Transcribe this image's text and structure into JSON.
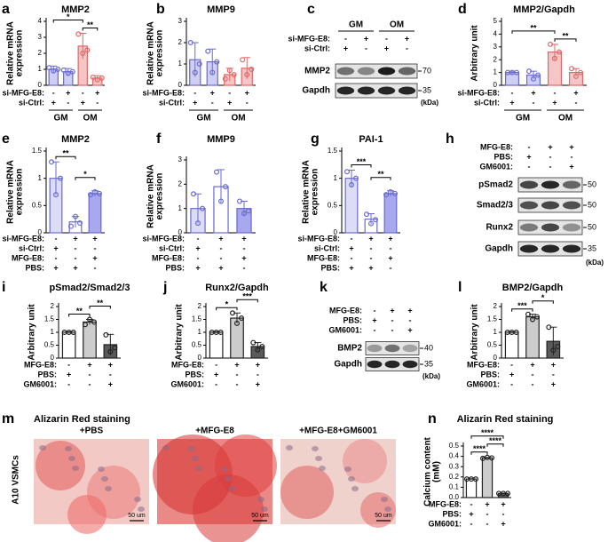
{
  "chart_data": [
    {
      "panel": "a",
      "type": "bar",
      "title": "MMP2",
      "y_label": [
        "Relative mRNA",
        "expression"
      ],
      "ylim": [
        0,
        4
      ],
      "yticks": [
        0,
        1,
        2,
        3,
        4
      ],
      "categories": [
        null,
        null,
        null,
        null
      ],
      "values": [
        1.0,
        0.85,
        2.45,
        0.45
      ],
      "errors": [
        0.2,
        0.2,
        0.8,
        0.15
      ],
      "points": [
        [
          1.1,
          0.9,
          1.0
        ],
        [
          0.95,
          0.75,
          0.85
        ],
        [
          3.2,
          2.0,
          2.2
        ],
        [
          0.5,
          0.35,
          0.45
        ]
      ],
      "colors": [
        "#cfcff5",
        "#cfcff5",
        "#f6c6c6",
        "#f6c6c6"
      ],
      "edge_colors": [
        "#6a6ad4",
        "#6a6ad4",
        "#e06868",
        "#e06868"
      ],
      "conditions": [
        {
          "label": "si-MFG-E8:",
          "signs": [
            "-",
            "+",
            "-",
            "+"
          ]
        },
        {
          "label": "si-Ctrl:",
          "signs": [
            "+",
            "-",
            "+",
            "-"
          ]
        }
      ],
      "groups": [
        "GM",
        "OM"
      ],
      "significance": [
        {
          "from": 2,
          "to": 3,
          "label": "**"
        },
        {
          "from": 0,
          "to": 2,
          "label": "*"
        }
      ]
    },
    {
      "panel": "b",
      "type": "bar",
      "title": "MMP9",
      "y_label": [
        "Relative mRNA",
        "expression"
      ],
      "ylim": [
        0,
        3
      ],
      "yticks": [
        0,
        1,
        2,
        3
      ],
      "categories": [
        null,
        null,
        null,
        null
      ],
      "values": [
        1.2,
        1.1,
        0.5,
        0.8
      ],
      "errors": [
        0.8,
        0.6,
        0.3,
        0.5
      ],
      "points": [
        [
          2.0,
          0.6,
          1.0
        ],
        [
          1.6,
          0.6,
          1.1
        ],
        [
          0.3,
          0.7,
          0.5
        ],
        [
          1.2,
          0.5,
          0.75
        ]
      ],
      "colors": [
        "#cfcff5",
        "#cfcff5",
        "#f6c6c6",
        "#f6c6c6"
      ],
      "edge_colors": [
        "#6a6ad4",
        "#6a6ad4",
        "#e06868",
        "#e06868"
      ],
      "conditions": [
        {
          "label": "si-MFG-E8:",
          "signs": [
            "-",
            "+",
            "-",
            "+"
          ]
        },
        {
          "label": "si-Ctrl:",
          "signs": [
            "+",
            "-",
            "+",
            "-"
          ]
        }
      ],
      "groups": [
        "GM",
        "OM"
      ],
      "significance": []
    },
    {
      "panel": "d",
      "type": "bar",
      "title": "MMP2/Gapdh",
      "y_label": [
        "Arbitrary unit"
      ],
      "ylim": [
        0,
        5
      ],
      "yticks": [
        0,
        1,
        2,
        3,
        4,
        5
      ],
      "categories": [
        null,
        null,
        null,
        null
      ],
      "values": [
        1.0,
        0.8,
        2.6,
        1.0
      ],
      "errors": [
        0.1,
        0.3,
        0.6,
        0.3
      ],
      "points": [
        [
          1.0,
          1.0,
          1.0
        ],
        [
          1.1,
          0.5,
          0.8
        ],
        [
          3.2,
          2.1,
          2.6
        ],
        [
          1.3,
          0.7,
          1.0
        ]
      ],
      "colors": [
        "#cfcff5",
        "#cfcff5",
        "#f6c6c6",
        "#f6c6c6"
      ],
      "edge_colors": [
        "#6a6ad4",
        "#6a6ad4",
        "#e06868",
        "#e06868"
      ],
      "conditions": [
        {
          "label": "si-MFG-E8:",
          "signs": [
            "-",
            "+",
            "-",
            "+"
          ]
        },
        {
          "label": "si-Ctrl:",
          "signs": [
            "+",
            "-",
            "+",
            "-"
          ]
        }
      ],
      "groups": [
        "GM",
        "OM"
      ],
      "significance": [
        {
          "from": 2,
          "to": 3,
          "label": "**"
        },
        {
          "from": 0,
          "to": 2,
          "label": "**"
        }
      ]
    },
    {
      "panel": "e",
      "type": "bar",
      "title": "MMP2",
      "y_label": [
        "Relative mRNA",
        "expression"
      ],
      "ylim": [
        0,
        1.5
      ],
      "yticks": [
        0,
        0.5,
        1,
        1.5
      ],
      "categories": [
        null,
        null,
        null
      ],
      "values": [
        1.0,
        0.2,
        0.72
      ],
      "errors": [
        0.3,
        0.1,
        0.05
      ],
      "points": [
        [
          1.3,
          0.7,
          1.0
        ],
        [
          0.12,
          0.3,
          0.18
        ],
        [
          0.7,
          0.75,
          0.72
        ]
      ],
      "colors": [
        "#dcdcf7",
        "#ffffff",
        "#a8a8ee"
      ],
      "edge_colors": [
        "#6a6ad4",
        "#6a6ad4",
        "#6a6ad4"
      ],
      "conditions": [
        {
          "label": "si-MFG-E8:",
          "signs": [
            "-",
            "+",
            "+"
          ]
        },
        {
          "label": "si-Ctrl:",
          "signs": [
            "+",
            "-",
            "-"
          ]
        },
        {
          "label": "MFG-E8:",
          "signs": [
            "-",
            "-",
            "+"
          ]
        },
        {
          "label": "PBS:",
          "signs": [
            "+",
            "+",
            "-"
          ]
        }
      ],
      "groups": [],
      "significance": [
        {
          "from": 0,
          "to": 1,
          "label": "**"
        },
        {
          "from": 1,
          "to": 2,
          "label": "*"
        }
      ]
    },
    {
      "panel": "f",
      "type": "bar",
      "title": "MMP9",
      "y_label": [
        "Relative mRNA",
        "expression"
      ],
      "ylim": [
        0,
        3
      ],
      "yticks": [
        0,
        1,
        2,
        3
      ],
      "categories": [
        null,
        null,
        null
      ],
      "values": [
        1.0,
        1.9,
        1.0
      ],
      "errors": [
        0.6,
        0.7,
        0.3
      ],
      "points": [
        [
          1.6,
          0.4,
          1.0
        ],
        [
          2.5,
          1.3,
          1.9
        ],
        [
          1.3,
          0.8,
          0.9
        ]
      ],
      "colors": [
        "#dcdcf7",
        "#ffffff",
        "#a8a8ee"
      ],
      "edge_colors": [
        "#6a6ad4",
        "#6a6ad4",
        "#6a6ad4"
      ],
      "conditions": [
        {
          "label": "si-MFG-E8:",
          "signs": [
            "-",
            "+",
            "+"
          ]
        },
        {
          "label": "si-Ctrl:",
          "signs": [
            "+",
            "-",
            "-"
          ]
        },
        {
          "label": "MFG-E8:",
          "signs": [
            "-",
            "-",
            "+"
          ]
        },
        {
          "label": "PBS:",
          "signs": [
            "+",
            "+",
            "-"
          ]
        }
      ],
      "groups": [],
      "significance": []
    },
    {
      "panel": "g",
      "type": "bar",
      "title": "PAI-1",
      "y_label": [
        "Relative mRNA",
        "expression"
      ],
      "ylim": [
        0,
        1.5
      ],
      "yticks": [
        0,
        0.5,
        1,
        1.5
      ],
      "categories": [
        null,
        null,
        null
      ],
      "values": [
        1.0,
        0.25,
        0.72
      ],
      "errors": [
        0.15,
        0.1,
        0.05
      ],
      "points": [
        [
          1.12,
          0.88,
          1.0
        ],
        [
          0.34,
          0.17,
          0.24
        ],
        [
          0.7,
          0.75,
          0.72
        ]
      ],
      "colors": [
        "#dcdcf7",
        "#ffffff",
        "#a8a8ee"
      ],
      "edge_colors": [
        "#6a6ad4",
        "#6a6ad4",
        "#6a6ad4"
      ],
      "conditions": [
        {
          "label": "si-MFG-E8:",
          "signs": [
            "-",
            "+",
            "+"
          ]
        },
        {
          "label": "si-Ctrl:",
          "signs": [
            "+",
            "-",
            "-"
          ]
        },
        {
          "label": "MFG-E8:",
          "signs": [
            "-",
            "-",
            "+"
          ]
        },
        {
          "label": "PBS:",
          "signs": [
            "+",
            "+",
            "-"
          ]
        }
      ],
      "groups": [],
      "significance": [
        {
          "from": 0,
          "to": 1,
          "label": "***"
        },
        {
          "from": 1,
          "to": 2,
          "label": "**"
        }
      ]
    },
    {
      "panel": "i",
      "type": "bar",
      "title": "pSmad2/Smad2/3",
      "y_label": [
        "Arbitrary unit"
      ],
      "ylim": [
        0,
        2
      ],
      "yticks": [
        0,
        0.5,
        1,
        1.5,
        2
      ],
      "categories": [
        null,
        null,
        null
      ],
      "values": [
        1.0,
        1.4,
        0.52
      ],
      "errors": [
        0.02,
        0.1,
        0.4
      ],
      "points": [
        [
          1.0,
          1.0,
          1.0
        ],
        [
          1.3,
          1.5,
          1.4
        ],
        [
          0.9,
          0.25,
          0.4
        ]
      ],
      "colors": [
        "#ffffff",
        "#cccccc",
        "#5a5a5a"
      ],
      "edge_colors": [
        "#222222",
        "#222222",
        "#222222"
      ],
      "conditions": [
        {
          "label": "MFG-E8:",
          "signs": [
            "-",
            "+",
            "+"
          ]
        },
        {
          "label": "PBS:",
          "signs": [
            "+",
            "-",
            "-"
          ]
        },
        {
          "label": "GM6001:",
          "signs": [
            "-",
            "-",
            "+"
          ]
        }
      ],
      "groups": [],
      "significance": [
        {
          "from": 0,
          "to": 1,
          "label": "**"
        },
        {
          "from": 1,
          "to": 2,
          "label": "**"
        }
      ]
    },
    {
      "panel": "j",
      "type": "bar",
      "title": "Runx2/Gapdh",
      "y_label": [
        "Arbitrary unit"
      ],
      "ylim": [
        0,
        2
      ],
      "yticks": [
        0,
        0.5,
        1,
        1.5,
        2
      ],
      "categories": [
        null,
        null,
        null
      ],
      "values": [
        1.0,
        1.55,
        0.45
      ],
      "errors": [
        0.02,
        0.2,
        0.15
      ],
      "points": [
        [
          1.0,
          1.0,
          1.0
        ],
        [
          1.75,
          1.35,
          1.55
        ],
        [
          0.6,
          0.32,
          0.45
        ]
      ],
      "colors": [
        "#ffffff",
        "#cccccc",
        "#5a5a5a"
      ],
      "edge_colors": [
        "#222222",
        "#222222",
        "#222222"
      ],
      "conditions": [
        {
          "label": "MFG-E8:",
          "signs": [
            "-",
            "+",
            "+"
          ]
        },
        {
          "label": "PBS:",
          "signs": [
            "+",
            "-",
            "-"
          ]
        },
        {
          "label": "GM6001:",
          "signs": [
            "-",
            "-",
            "+"
          ]
        }
      ],
      "groups": [],
      "significance": [
        {
          "from": 0,
          "to": 1,
          "label": "*"
        },
        {
          "from": 1,
          "to": 2,
          "label": "***"
        }
      ]
    },
    {
      "panel": "l",
      "type": "bar",
      "title": "BMP2/Gapdh",
      "y_label": [
        "Arbitrary unit"
      ],
      "ylim": [
        0,
        2
      ],
      "yticks": [
        0,
        0.5,
        1,
        1.5,
        2
      ],
      "categories": [
        null,
        null,
        null
      ],
      "values": [
        1.0,
        1.6,
        0.65
      ],
      "errors": [
        0.02,
        0.1,
        0.55
      ],
      "points": [
        [
          1.0,
          1.0,
          1.0
        ],
        [
          1.7,
          1.5,
          1.6
        ],
        [
          1.2,
          0.3,
          0.45
        ]
      ],
      "colors": [
        "#ffffff",
        "#cccccc",
        "#5a5a5a"
      ],
      "edge_colors": [
        "#222222",
        "#222222",
        "#222222"
      ],
      "conditions": [
        {
          "label": "MFG-E8:",
          "signs": [
            "-",
            "+",
            "+"
          ]
        },
        {
          "label": "PBS:",
          "signs": [
            "+",
            "-",
            "-"
          ]
        },
        {
          "label": "GM6001:",
          "signs": [
            "-",
            "-",
            "+"
          ]
        }
      ],
      "groups": [],
      "significance": [
        {
          "from": 0,
          "to": 1,
          "label": "***"
        },
        {
          "from": 1,
          "to": 2,
          "label": "*"
        }
      ]
    },
    {
      "panel": "n",
      "type": "bar",
      "title": "Alizarin Red staining",
      "y_label": [
        "Calcium content",
        "(mM)"
      ],
      "ylim": [
        0,
        0.5
      ],
      "yticks": [
        {
          "value": 0,
          "label": "0.0"
        },
        0.1,
        0.2,
        0.3,
        0.4,
        0.5
      ],
      "categories": [
        null,
        null,
        null
      ],
      "values": [
        0.18,
        0.385,
        0.04
      ],
      "errors": [
        0.003,
        0.004,
        0.003
      ],
      "points": [
        [
          0.18,
          0.18,
          0.18
        ],
        [
          0.38,
          0.39,
          0.385
        ],
        [
          0.04,
          0.04,
          0.04
        ]
      ],
      "colors": [
        "#ffffff",
        "#cccccc",
        "#5a5a5a"
      ],
      "edge_colors": [
        "#222222",
        "#222222",
        "#222222"
      ],
      "conditions": [
        {
          "label": "MFG-E8:",
          "signs": [
            "-",
            "+",
            "+"
          ]
        },
        {
          "label": "PBS:",
          "signs": [
            "+",
            "-",
            "-"
          ]
        },
        {
          "label": "GM6001:",
          "signs": [
            "-",
            "-",
            "+"
          ]
        }
      ],
      "groups": [],
      "significance": [
        {
          "from": 0,
          "to": 1,
          "label": "****"
        },
        {
          "from": 1,
          "to": 2,
          "label": "****"
        },
        {
          "from": 0,
          "to": 2,
          "label": "****"
        }
      ]
    }
  ],
  "blots": [
    {
      "panel": "c",
      "groups": [
        "GM",
        "OM"
      ],
      "conditions": [
        {
          "label": "si-MFG-E8:",
          "signs": [
            "-",
            "+",
            "-",
            "+"
          ]
        },
        {
          "label": "si-Ctrl:",
          "signs": [
            "+",
            "-",
            "+",
            "-"
          ]
        }
      ],
      "bands": [
        {
          "label": "MMP2",
          "marker": "70"
        },
        {
          "label": "Gapdh",
          "marker": "35"
        }
      ],
      "unit": "(kDa)"
    },
    {
      "panel": "h",
      "groups": [],
      "conditions": [
        {
          "label": "MFG-E8:",
          "signs": [
            "-",
            "+",
            "+"
          ]
        },
        {
          "label": "PBS:",
          "signs": [
            "+",
            "-",
            "-"
          ]
        },
        {
          "label": "GM6001:",
          "signs": [
            "-",
            "-",
            "+"
          ]
        }
      ],
      "bands": [
        {
          "label": "pSmad2",
          "marker": "50"
        },
        {
          "label": "Smad2/3",
          "marker": "50"
        },
        {
          "label": "Runx2",
          "marker": "50"
        },
        {
          "label": "Gapdh",
          "marker": "35"
        }
      ],
      "unit": "(kDa)"
    },
    {
      "panel": "k",
      "groups": [],
      "conditions": [
        {
          "label": "MFG-E8:",
          "signs": [
            "-",
            "+",
            "+"
          ]
        },
        {
          "label": "PBS:",
          "signs": [
            "+",
            "-",
            "-"
          ]
        },
        {
          "label": "GM6001:",
          "signs": [
            "-",
            "-",
            "+"
          ]
        }
      ],
      "bands": [
        {
          "label": "BMP2",
          "marker": "40"
        },
        {
          "label": "Gapdh",
          "marker": "35"
        }
      ],
      "unit": "(kDa)"
    }
  ],
  "staining": {
    "panel": "m",
    "title": "Alizarin Red staining",
    "side_label": "A10 VSMCs",
    "images": [
      {
        "label": "+PBS",
        "scale": "50 um"
      },
      {
        "label": "+MFG-E8",
        "scale": "50 um"
      },
      {
        "label": "+MFG-E8+GM6001",
        "scale": "50 um"
      }
    ]
  }
}
